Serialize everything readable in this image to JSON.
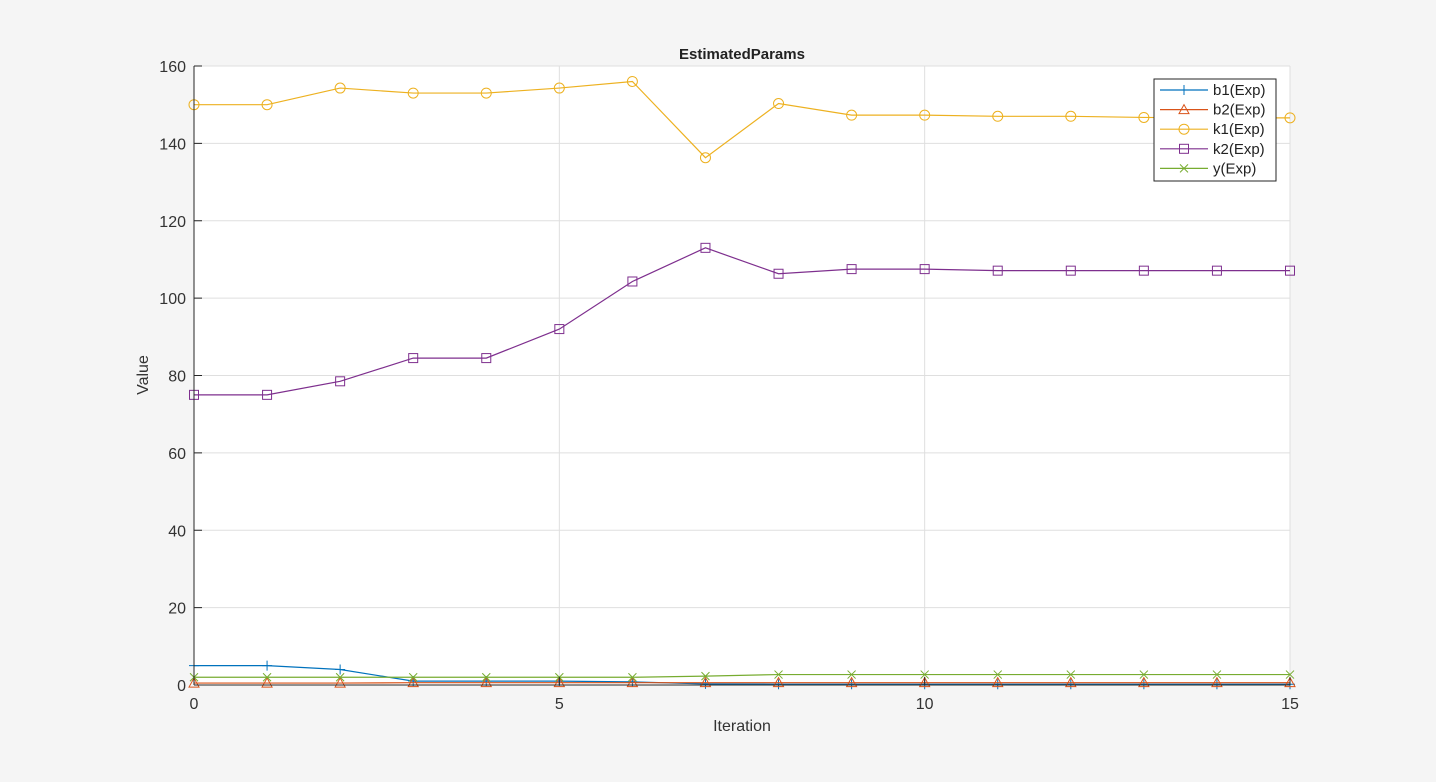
{
  "chart_data": {
    "type": "line",
    "title": "EstimatedParams",
    "xlabel": "Iteration",
    "ylabel": "Value",
    "xlim": [
      0,
      15
    ],
    "ylim": [
      0,
      160
    ],
    "xticks": [
      0,
      5,
      10,
      15
    ],
    "yticks": [
      0,
      20,
      40,
      60,
      80,
      100,
      120,
      140,
      160
    ],
    "grid": true,
    "legend_position": "top-right",
    "x": [
      0,
      1,
      2,
      3,
      4,
      5,
      6,
      7,
      8,
      9,
      10,
      11,
      12,
      13,
      14,
      15
    ],
    "series": [
      {
        "name": "b1(Exp)",
        "color": "#0072BD",
        "marker": "plus",
        "values": [
          5,
          5,
          4,
          1,
          1,
          1,
          0.8,
          0.3,
          0.2,
          0.2,
          0.2,
          0.2,
          0.2,
          0.2,
          0.2,
          0.2
        ]
      },
      {
        "name": "b2(Exp)",
        "color": "#D95319",
        "marker": "triangle",
        "values": [
          0.5,
          0.5,
          0.5,
          0.6,
          0.6,
          0.6,
          0.6,
          0.6,
          0.6,
          0.6,
          0.6,
          0.6,
          0.6,
          0.6,
          0.6,
          0.6
        ]
      },
      {
        "name": "k1(Exp)",
        "color": "#EDB120",
        "marker": "circle",
        "values": [
          150,
          150,
          154.3,
          153,
          153,
          154.3,
          156,
          136.3,
          150.3,
          147.3,
          147.3,
          147,
          147,
          146.7,
          146.6,
          146.6
        ]
      },
      {
        "name": "k2(Exp)",
        "color": "#7E2F8E",
        "marker": "square",
        "values": [
          75,
          75,
          78.5,
          84.5,
          84.5,
          92,
          104.3,
          113,
          106.3,
          107.5,
          107.5,
          107.1,
          107.1,
          107.1,
          107.1,
          107.1
        ]
      },
      {
        "name": "y(Exp)",
        "color": "#77AC30",
        "marker": "x",
        "values": [
          2,
          2,
          2,
          2,
          2,
          2,
          2,
          2.3,
          2.7,
          2.7,
          2.7,
          2.7,
          2.7,
          2.7,
          2.7,
          2.7
        ]
      }
    ]
  }
}
